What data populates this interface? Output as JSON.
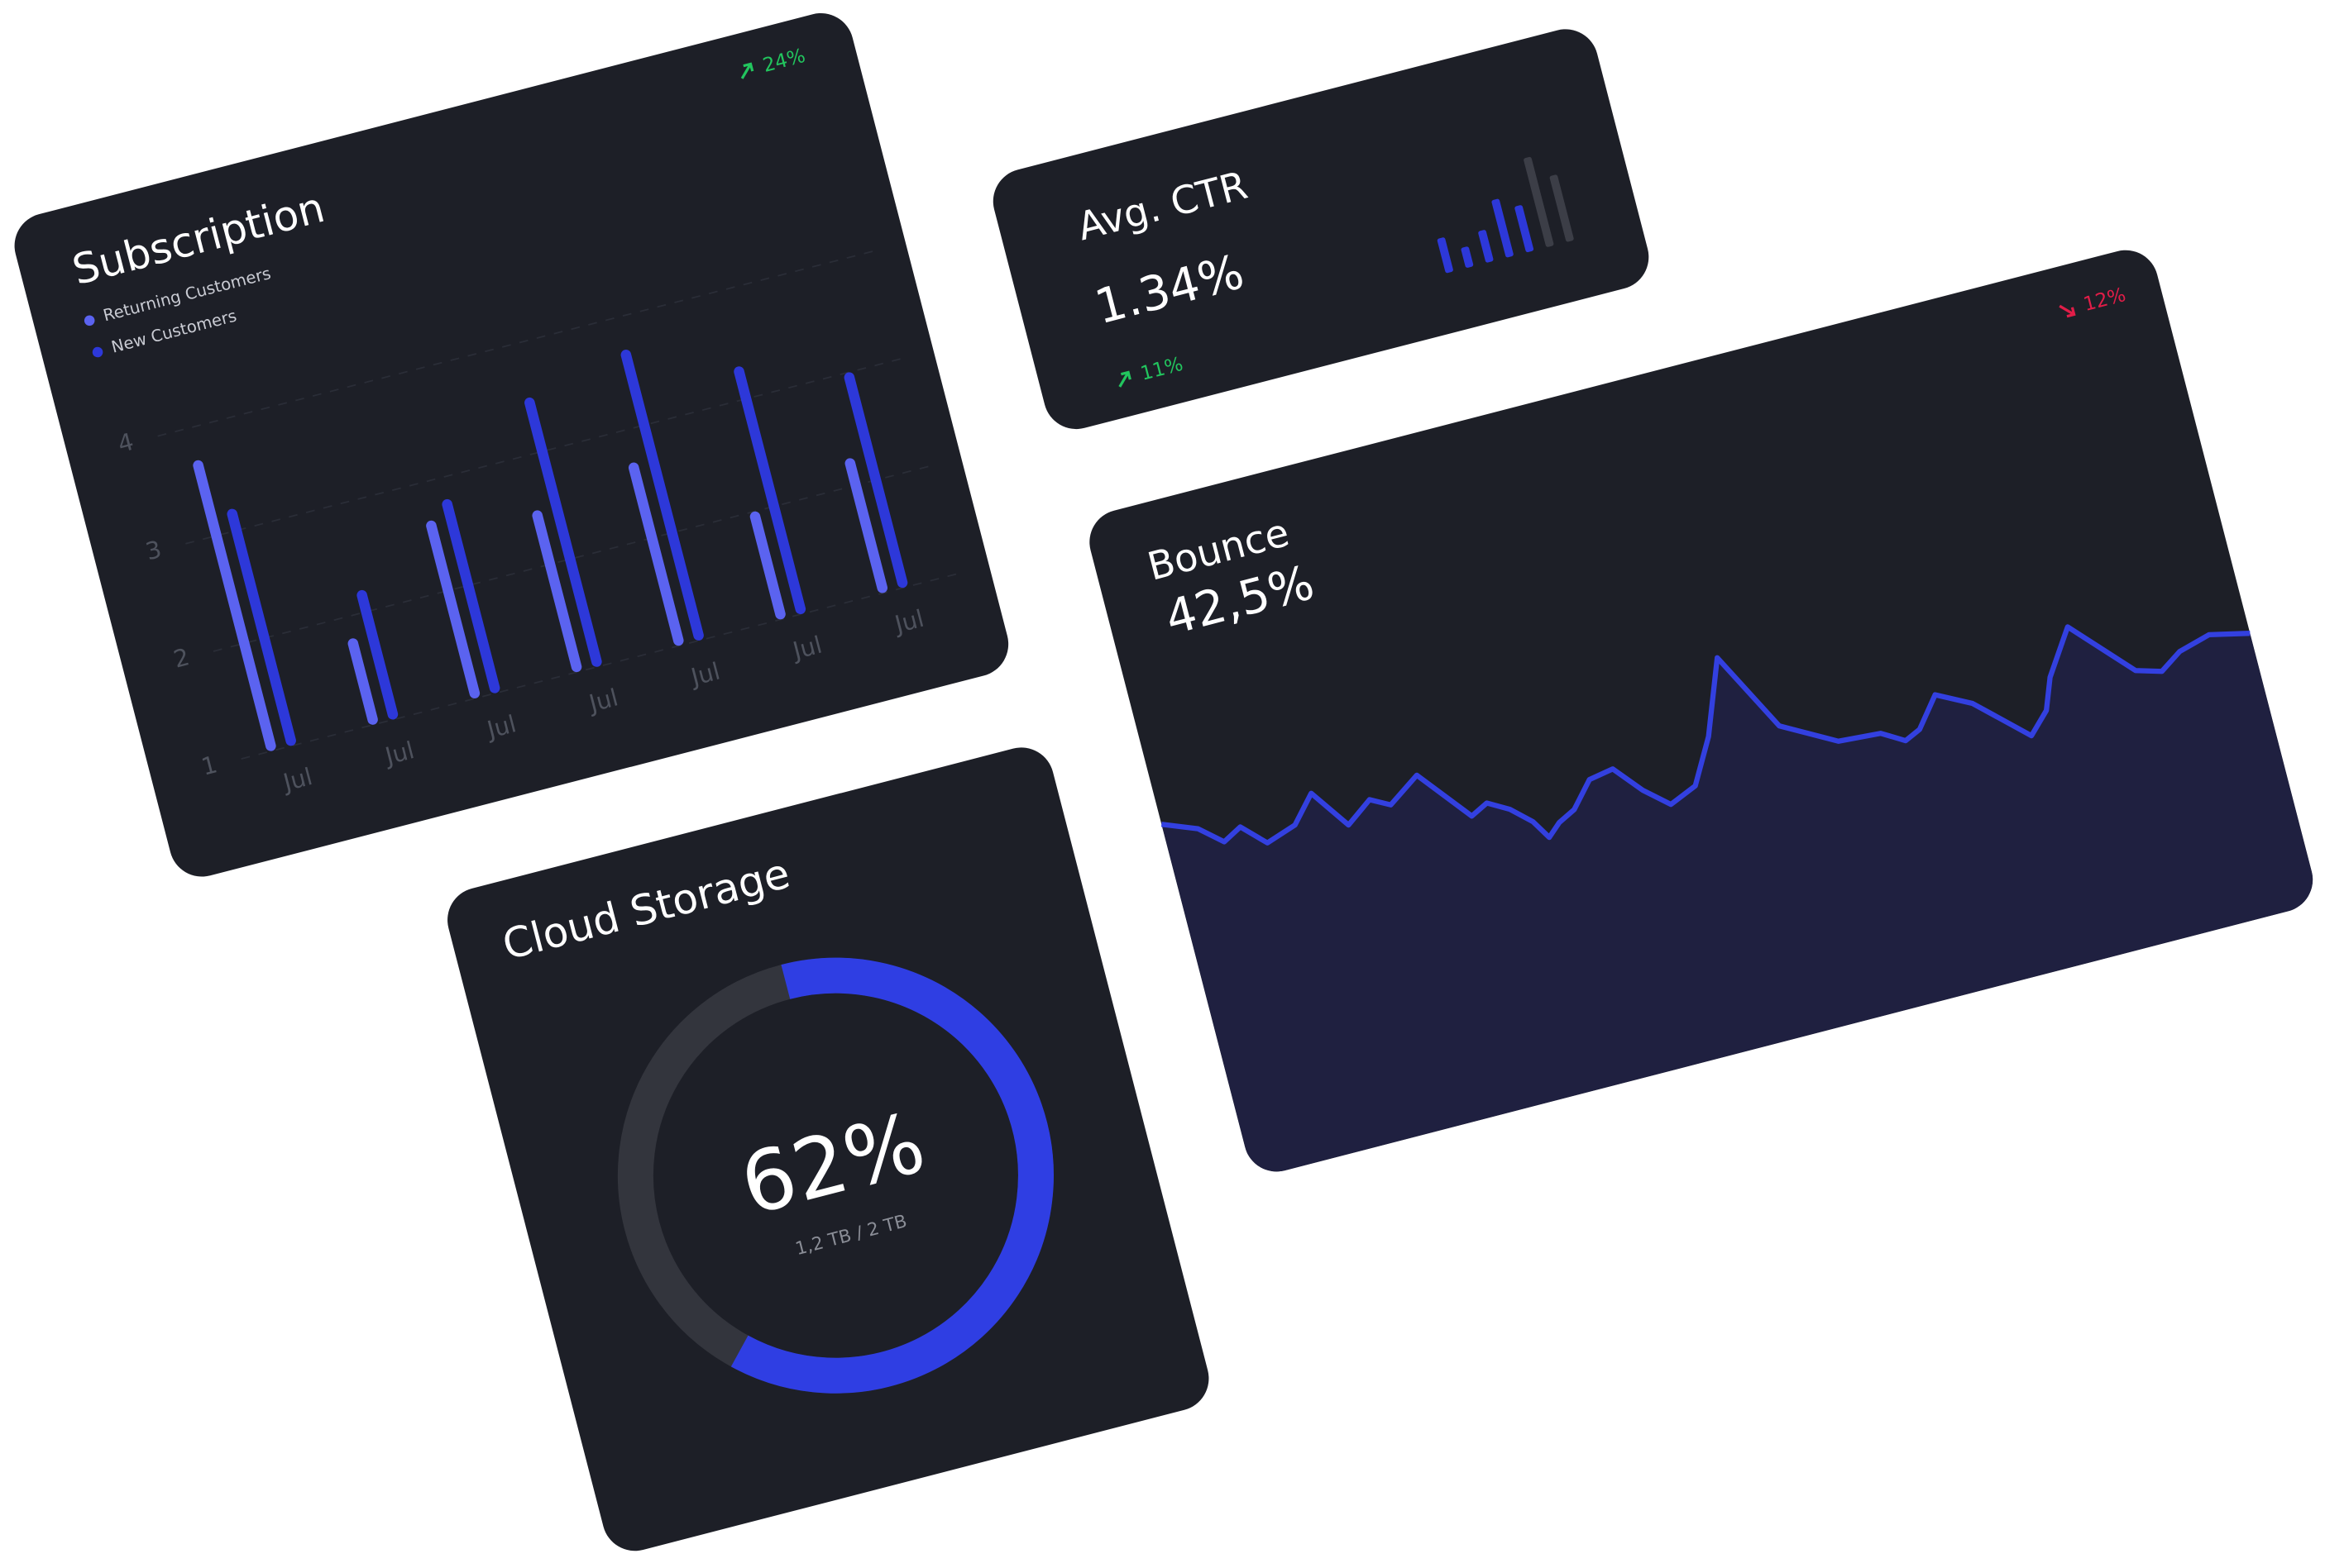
{
  "chart_data": [
    {
      "type": "bar",
      "title": "Subscription",
      "categories": [
        "Jul",
        "Jul",
        "Jul",
        "Jul",
        "Jul",
        "Jul",
        "Jul"
      ],
      "series": [
        {
          "name": "Returning Customers",
          "color": "#5b63f0",
          "values": [
            3.7,
            1.8,
            2.65,
            2.5,
            2.7,
            2.0,
            2.25
          ]
        },
        {
          "name": "New Customers",
          "color": "#2d38d9",
          "values": [
            3.2,
            2.2,
            2.8,
            3.5,
            3.7,
            3.3,
            3.0
          ]
        }
      ],
      "ylim": [
        1,
        4.5
      ],
      "yticks": [
        1,
        2,
        3,
        4
      ],
      "grid": true,
      "change": "24%",
      "change_color": "#22c55e",
      "change_direction": "up"
    },
    {
      "type": "sparkbar",
      "title": "Avg. CTR",
      "kpi": "1.34%",
      "values": [
        24,
        14,
        22,
        40,
        32,
        62,
        46
      ],
      "colors": [
        "#2d38d9",
        "#2d38d9",
        "#2d38d9",
        "#2d38d9",
        "#2d38d9",
        "#3c3e47",
        "#3c3e47"
      ],
      "ylim": [
        0,
        70
      ],
      "change": "11%",
      "change_color": "#22c55e",
      "change_direction": "up"
    },
    {
      "type": "area",
      "title": "Bounce",
      "kpi": "42,5%",
      "x": [
        0,
        23,
        38,
        51,
        66,
        87,
        103,
        122,
        140,
        153,
        175,
        204,
        216,
        230,
        243,
        251,
        260,
        272,
        287,
        304,
        320,
        336,
        355,
        372,
        391,
        420,
        456,
        485,
        500,
        511,
        527,
        550,
        583,
        597,
        605,
        625,
        662,
        679,
        694,
        716,
        743
      ],
      "values": [
        247,
        238,
        225,
        232,
        217,
        224,
        242,
        215,
        228,
        221,
        236,
        200,
        206,
        198,
        186,
        173,
        181,
        187,
        204,
        207,
        188,
        174,
        182,
        212,
        262,
        207,
        187,
        185,
        176,
        181,
        201,
        189,
        158,
        172,
        193,
        223,
        183,
        178,
        188,
        194,
        188
      ],
      "xlim": [
        0,
        743
      ],
      "ylim": [
        0,
        460
      ],
      "color": "#3340e0",
      "fill": "#1f2040",
      "change": "12%",
      "change_color": "#e11d48",
      "change_direction": "down"
    },
    {
      "type": "donut",
      "title": "Cloud Storage",
      "values": [
        62
      ],
      "value_labels": [
        "62%"
      ],
      "subtitle": "1,2 TB / 2 TB",
      "color": "#2f3ee3",
      "track_color": "#33353d"
    }
  ]
}
